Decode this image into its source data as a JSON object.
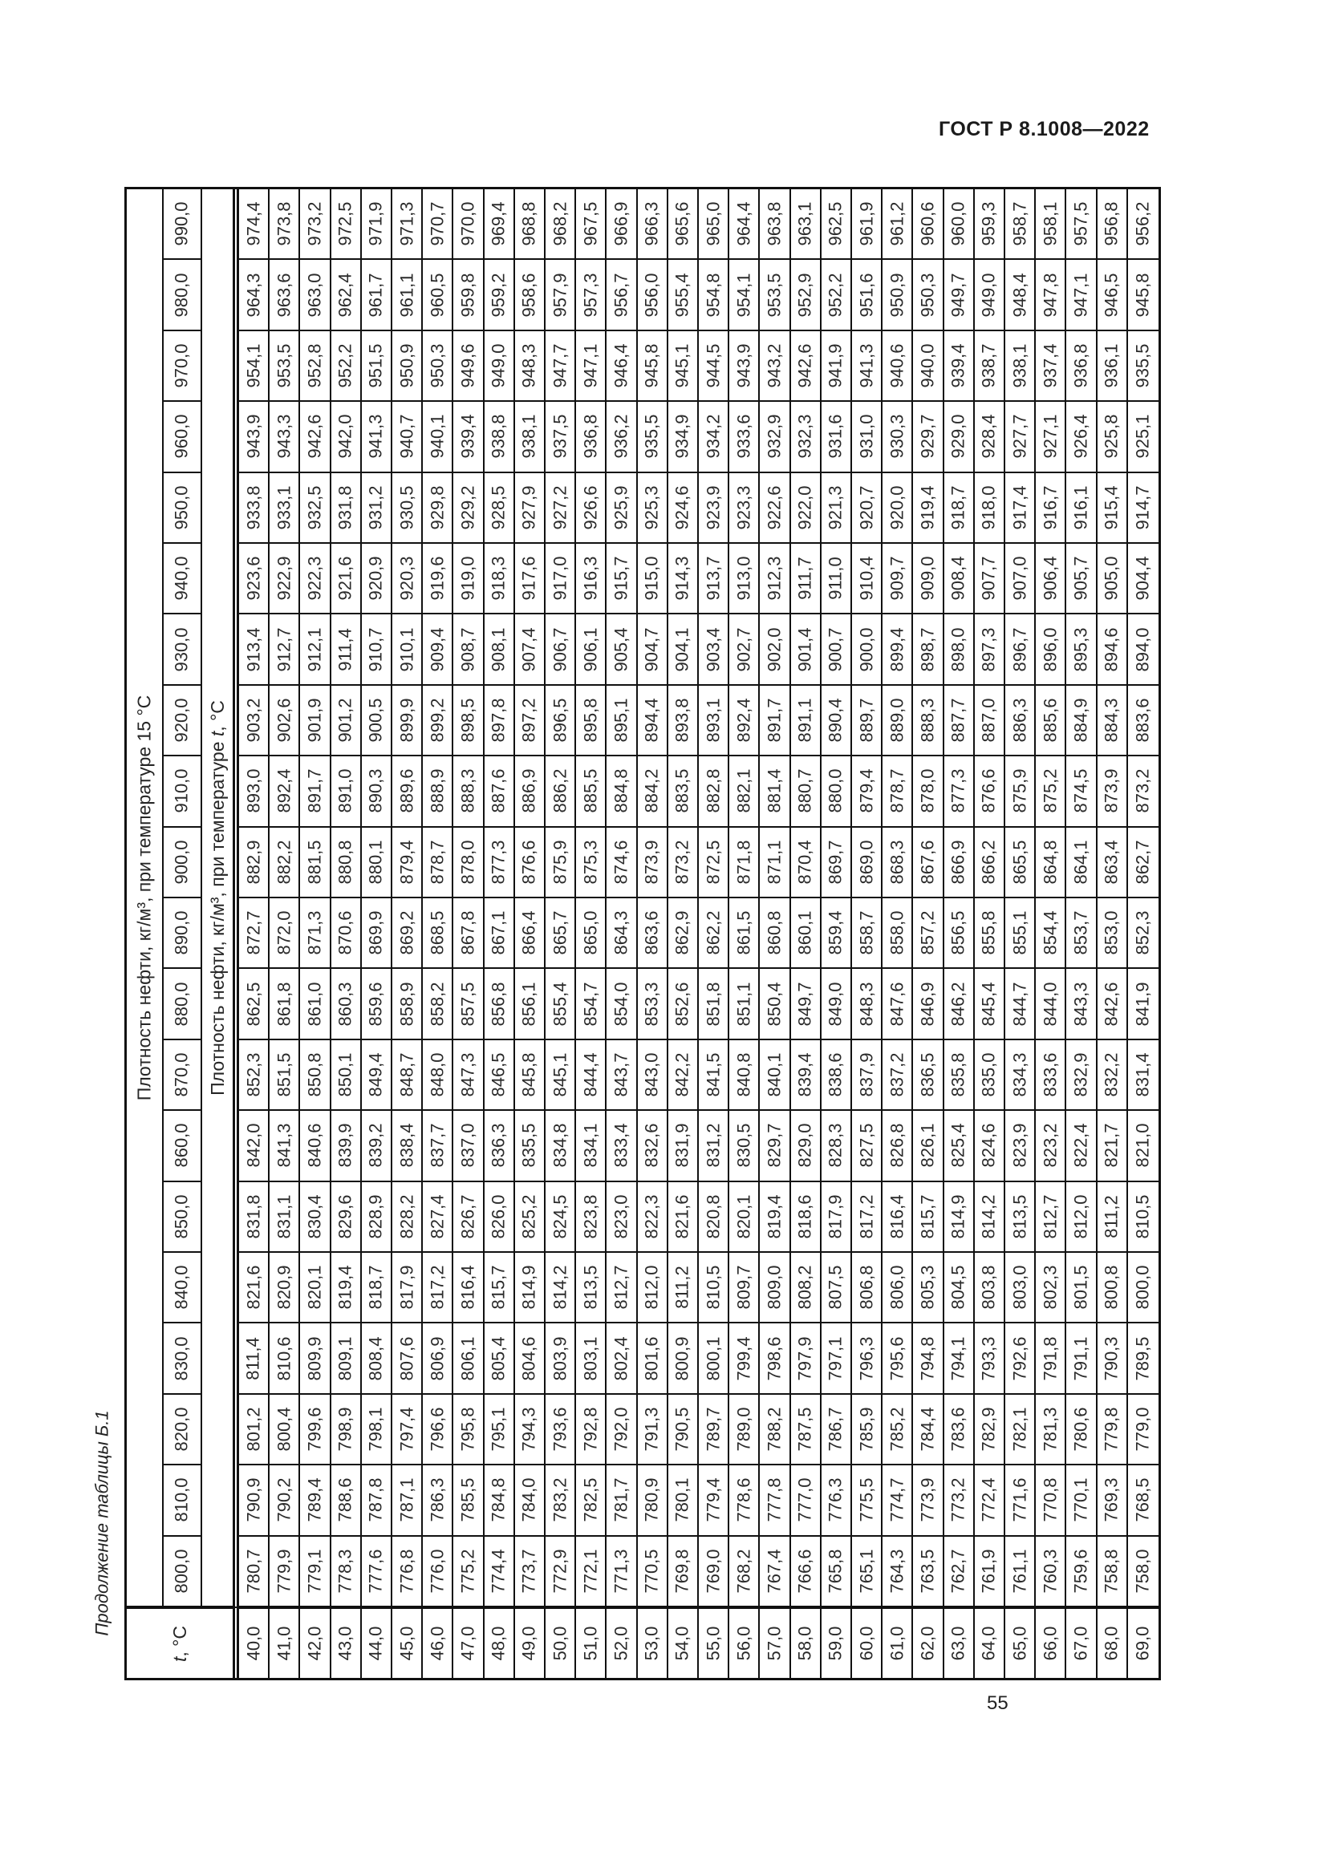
{
  "page": {
    "header": "ГОСТ Р 8.1008—2022",
    "caption": "Продолжение таблицы Б.1",
    "page_number": "55"
  },
  "table": {
    "col_header_15": "Плотность нефти, кг/м³, при температуре 15 °С",
    "col_header_t_prefix": "Плотность нефти, кг/м³, при температуре ",
    "col_header_t_symbol": "t",
    "col_header_t_suffix": ", °С",
    "corner_t_symbol": "t",
    "corner_t_suffix": ", °С",
    "temperature_labels": [
      "40,0",
      "41,0",
      "42,0",
      "43,0",
      "44,0",
      "45,0",
      "46,0",
      "47,0",
      "48,0",
      "49,0",
      "50,0",
      "51,0",
      "52,0",
      "53,0",
      "54,0",
      "55,0",
      "56,0",
      "57,0",
      "58,0",
      "59,0",
      "60,0",
      "61,0",
      "62,0",
      "63,0",
      "64,0",
      "65,0",
      "66,0",
      "67,0",
      "68,0",
      "69,0"
    ],
    "rows": [
      {
        "density": "990,0",
        "values": [
          "974,4",
          "973,8",
          "973,2",
          "972,5",
          "971,9",
          "971,3",
          "970,7",
          "970,0",
          "969,4",
          "968,8",
          "968,2",
          "967,5",
          "966,9",
          "966,3",
          "965,6",
          "965,0",
          "964,4",
          "963,8",
          "963,1",
          "962,5",
          "961,9",
          "961,2",
          "960,6",
          "960,0",
          "959,3",
          "958,7",
          "958,1",
          "957,5",
          "956,8",
          "956,2"
        ]
      },
      {
        "density": "980,0",
        "values": [
          "964,3",
          "963,6",
          "963,0",
          "962,4",
          "961,7",
          "961,1",
          "960,5",
          "959,8",
          "959,2",
          "958,6",
          "957,9",
          "957,3",
          "956,7",
          "956,0",
          "955,4",
          "954,8",
          "954,1",
          "953,5",
          "952,9",
          "952,2",
          "951,6",
          "950,9",
          "950,3",
          "949,7",
          "949,0",
          "948,4",
          "947,8",
          "947,1",
          "946,5",
          "945,8"
        ]
      },
      {
        "density": "970,0",
        "values": [
          "954,1",
          "953,5",
          "952,8",
          "952,2",
          "951,5",
          "950,9",
          "950,3",
          "949,6",
          "949,0",
          "948,3",
          "947,7",
          "947,1",
          "946,4",
          "945,8",
          "945,1",
          "944,5",
          "943,9",
          "943,2",
          "942,6",
          "941,9",
          "941,3",
          "940,6",
          "940,0",
          "939,4",
          "938,7",
          "938,1",
          "937,4",
          "936,8",
          "936,1",
          "935,5"
        ]
      },
      {
        "density": "960,0",
        "values": [
          "943,9",
          "943,3",
          "942,6",
          "942,0",
          "941,3",
          "940,7",
          "940,1",
          "939,4",
          "938,8",
          "938,1",
          "937,5",
          "936,8",
          "936,2",
          "935,5",
          "934,9",
          "934,2",
          "933,6",
          "932,9",
          "932,3",
          "931,6",
          "931,0",
          "930,3",
          "929,7",
          "929,0",
          "928,4",
          "927,7",
          "927,1",
          "926,4",
          "925,8",
          "925,1"
        ]
      },
      {
        "density": "950,0",
        "values": [
          "933,8",
          "933,1",
          "932,5",
          "931,8",
          "931,2",
          "930,5",
          "929,8",
          "929,2",
          "928,5",
          "927,9",
          "927,2",
          "926,6",
          "925,9",
          "925,3",
          "924,6",
          "923,9",
          "923,3",
          "922,6",
          "922,0",
          "921,3",
          "920,7",
          "920,0",
          "919,4",
          "918,7",
          "918,0",
          "917,4",
          "916,7",
          "916,1",
          "915,4",
          "914,7"
        ]
      },
      {
        "density": "940,0",
        "values": [
          "923,6",
          "922,9",
          "922,3",
          "921,6",
          "920,9",
          "920,3",
          "919,6",
          "919,0",
          "918,3",
          "917,6",
          "917,0",
          "916,3",
          "915,7",
          "915,0",
          "914,3",
          "913,7",
          "913,0",
          "912,3",
          "911,7",
          "911,0",
          "910,4",
          "909,7",
          "909,0",
          "908,4",
          "907,7",
          "907,0",
          "906,4",
          "905,7",
          "905,0",
          "904,4"
        ]
      },
      {
        "density": "930,0",
        "values": [
          "913,4",
          "912,7",
          "912,1",
          "911,4",
          "910,7",
          "910,1",
          "909,4",
          "908,7",
          "908,1",
          "907,4",
          "906,7",
          "906,1",
          "905,4",
          "904,7",
          "904,1",
          "903,4",
          "902,7",
          "902,0",
          "901,4",
          "900,7",
          "900,0",
          "899,4",
          "898,7",
          "898,0",
          "897,3",
          "896,7",
          "896,0",
          "895,3",
          "894,6",
          "894,0"
        ]
      },
      {
        "density": "920,0",
        "values": [
          "903,2",
          "902,6",
          "901,9",
          "901,2",
          "900,5",
          "899,9",
          "899,2",
          "898,5",
          "897,8",
          "897,2",
          "896,5",
          "895,8",
          "895,1",
          "894,4",
          "893,8",
          "893,1",
          "892,4",
          "891,7",
          "891,1",
          "890,4",
          "889,7",
          "889,0",
          "888,3",
          "887,7",
          "887,0",
          "886,3",
          "885,6",
          "884,9",
          "884,3",
          "883,6"
        ]
      },
      {
        "density": "910,0",
        "values": [
          "893,0",
          "892,4",
          "891,7",
          "891,0",
          "890,3",
          "889,6",
          "888,9",
          "888,3",
          "887,6",
          "886,9",
          "886,2",
          "885,5",
          "884,8",
          "884,2",
          "883,5",
          "882,8",
          "882,1",
          "881,4",
          "880,7",
          "880,0",
          "879,4",
          "878,7",
          "878,0",
          "877,3",
          "876,6",
          "875,9",
          "875,2",
          "874,5",
          "873,9",
          "873,2"
        ]
      },
      {
        "density": "900,0",
        "values": [
          "882,9",
          "882,2",
          "881,5",
          "880,8",
          "880,1",
          "879,4",
          "878,7",
          "878,0",
          "877,3",
          "876,6",
          "875,9",
          "875,3",
          "874,6",
          "873,9",
          "873,2",
          "872,5",
          "871,8",
          "871,1",
          "870,4",
          "869,7",
          "869,0",
          "868,3",
          "867,6",
          "866,9",
          "866,2",
          "865,5",
          "864,8",
          "864,1",
          "863,4",
          "862,7"
        ]
      },
      {
        "density": "890,0",
        "values": [
          "872,7",
          "872,0",
          "871,3",
          "870,6",
          "869,9",
          "869,2",
          "868,5",
          "867,8",
          "867,1",
          "866,4",
          "865,7",
          "865,0",
          "864,3",
          "863,6",
          "862,9",
          "862,2",
          "861,5",
          "860,8",
          "860,1",
          "859,4",
          "858,7",
          "858,0",
          "857,2",
          "856,5",
          "855,8",
          "855,1",
          "854,4",
          "853,7",
          "853,0",
          "852,3"
        ]
      },
      {
        "density": "880,0",
        "values": [
          "862,5",
          "861,8",
          "861,0",
          "860,3",
          "859,6",
          "858,9",
          "858,2",
          "857,5",
          "856,8",
          "856,1",
          "855,4",
          "854,7",
          "854,0",
          "853,3",
          "852,6",
          "851,8",
          "851,1",
          "850,4",
          "849,7",
          "849,0",
          "848,3",
          "847,6",
          "846,9",
          "846,2",
          "845,4",
          "844,7",
          "844,0",
          "843,3",
          "842,6",
          "841,9"
        ]
      },
      {
        "density": "870,0",
        "values": [
          "852,3",
          "851,5",
          "850,8",
          "850,1",
          "849,4",
          "848,7",
          "848,0",
          "847,3",
          "846,5",
          "845,8",
          "845,1",
          "844,4",
          "843,7",
          "843,0",
          "842,2",
          "841,5",
          "840,8",
          "840,1",
          "839,4",
          "838,6",
          "837,9",
          "837,2",
          "836,5",
          "835,8",
          "835,0",
          "834,3",
          "833,6",
          "832,9",
          "832,2",
          "831,4"
        ]
      },
      {
        "density": "860,0",
        "values": [
          "842,0",
          "841,3",
          "840,6",
          "839,9",
          "839,2",
          "838,4",
          "837,7",
          "837,0",
          "836,3",
          "835,5",
          "834,8",
          "834,1",
          "833,4",
          "832,6",
          "831,9",
          "831,2",
          "830,5",
          "829,7",
          "829,0",
          "828,3",
          "827,5",
          "826,8",
          "826,1",
          "825,4",
          "824,6",
          "823,9",
          "823,2",
          "822,4",
          "821,7",
          "821,0"
        ]
      },
      {
        "density": "850,0",
        "values": [
          "831,8",
          "831,1",
          "830,4",
          "829,6",
          "828,9",
          "828,2",
          "827,4",
          "826,7",
          "826,0",
          "825,2",
          "824,5",
          "823,8",
          "823,0",
          "822,3",
          "821,6",
          "820,8",
          "820,1",
          "819,4",
          "818,6",
          "817,9",
          "817,2",
          "816,4",
          "815,7",
          "814,9",
          "814,2",
          "813,5",
          "812,7",
          "812,0",
          "811,2",
          "810,5"
        ]
      },
      {
        "density": "840,0",
        "values": [
          "821,6",
          "820,9",
          "820,1",
          "819,4",
          "818,7",
          "817,9",
          "817,2",
          "816,4",
          "815,7",
          "814,9",
          "814,2",
          "813,5",
          "812,7",
          "812,0",
          "811,2",
          "810,5",
          "809,7",
          "809,0",
          "808,2",
          "807,5",
          "806,8",
          "806,0",
          "805,3",
          "804,5",
          "803,8",
          "803,0",
          "802,3",
          "801,5",
          "800,8",
          "800,0"
        ]
      },
      {
        "density": "830,0",
        "values": [
          "811,4",
          "810,6",
          "809,9",
          "809,1",
          "808,4",
          "807,6",
          "806,9",
          "806,1",
          "805,4",
          "804,6",
          "803,9",
          "803,1",
          "802,4",
          "801,6",
          "800,9",
          "800,1",
          "799,4",
          "798,6",
          "797,9",
          "797,1",
          "796,3",
          "795,6",
          "794,8",
          "794,1",
          "793,3",
          "792,6",
          "791,8",
          "791,1",
          "790,3",
          "789,5"
        ]
      },
      {
        "density": "820,0",
        "values": [
          "801,2",
          "800,4",
          "799,6",
          "798,9",
          "798,1",
          "797,4",
          "796,6",
          "795,8",
          "795,1",
          "794,3",
          "793,6",
          "792,8",
          "792,0",
          "791,3",
          "790,5",
          "789,7",
          "789,0",
          "788,2",
          "787,5",
          "786,7",
          "785,9",
          "785,2",
          "784,4",
          "783,6",
          "782,9",
          "782,1",
          "781,3",
          "780,6",
          "779,8",
          "779,0"
        ]
      },
      {
        "density": "810,0",
        "values": [
          "790,9",
          "790,2",
          "789,4",
          "788,6",
          "787,8",
          "787,1",
          "786,3",
          "785,5",
          "784,8",
          "784,0",
          "783,2",
          "782,5",
          "781,7",
          "780,9",
          "780,1",
          "779,4",
          "778,6",
          "777,8",
          "777,0",
          "776,3",
          "775,5",
          "774,7",
          "773,9",
          "773,2",
          "772,4",
          "771,6",
          "770,8",
          "770,1",
          "769,3",
          "768,5"
        ]
      },
      {
        "density": "800,0",
        "values": [
          "780,7",
          "779,9",
          "779,1",
          "778,3",
          "777,6",
          "776,8",
          "776,0",
          "775,2",
          "774,4",
          "773,7",
          "772,9",
          "772,1",
          "771,3",
          "770,5",
          "769,8",
          "769,0",
          "768,2",
          "767,4",
          "766,6",
          "765,8",
          "765,1",
          "764,3",
          "763,5",
          "762,7",
          "761,9",
          "761,1",
          "760,3",
          "759,6",
          "758,8",
          "758,0"
        ]
      }
    ]
  }
}
